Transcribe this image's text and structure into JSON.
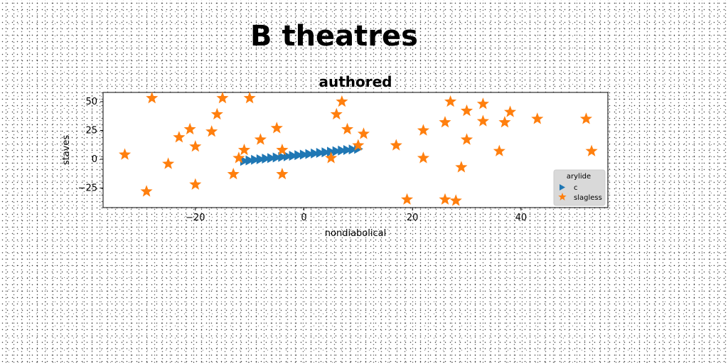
{
  "page_title": "B theatres",
  "colors": {
    "series_1": "#1f77b4",
    "series_2": "#ff7f0e",
    "legend_bg": "#d9d9d9"
  },
  "chart_data": {
    "type": "scatter",
    "title": "authored",
    "xlabel": "nondiabolical",
    "ylabel": "staves",
    "xlim": [
      -37,
      56
    ],
    "ylim": [
      -42,
      58
    ],
    "xticks": [
      -20,
      0,
      20,
      40
    ],
    "yticks": [
      -25,
      0,
      25,
      50
    ],
    "grid": false,
    "legend": {
      "title": "arylide",
      "placement": "lower-right"
    },
    "series": [
      {
        "name": "c",
        "marker": "triangle-right",
        "color": "#1f77b4",
        "x": [
          -11.0,
          -10.0,
          -9.0,
          -8.0,
          -7.0,
          -6.0,
          -5.0,
          -4.0,
          -3.0,
          -2.0,
          -1.0,
          0.0,
          1.0,
          2.0,
          3.0,
          4.0,
          5.0,
          6.0,
          7.0,
          8.0,
          9.0,
          10.0
        ],
        "y": [
          -1.5,
          -1.0,
          -0.5,
          0.0,
          0.5,
          1.0,
          1.5,
          2.0,
          2.5,
          3.0,
          3.5,
          4.0,
          4.5,
          5.0,
          5.5,
          6.0,
          6.5,
          7.0,
          7.5,
          8.0,
          8.5,
          9.0
        ]
      },
      {
        "name": "slagless",
        "marker": "star",
        "color": "#ff7f0e",
        "x": [
          -28,
          -15,
          -10,
          -16,
          7,
          6,
          -17,
          -21,
          -23,
          -20,
          -5,
          -8,
          8,
          11,
          -11,
          -4,
          -12,
          10,
          5,
          -33,
          -25,
          -13,
          -4,
          -20,
          -29,
          17,
          22,
          22,
          26,
          27,
          30,
          33,
          33,
          38,
          37,
          43,
          52,
          30,
          36,
          53,
          29,
          19,
          26,
          28
        ],
        "y": [
          53,
          53,
          53,
          39,
          50,
          39,
          24,
          26,
          19,
          11,
          27,
          17,
          26,
          22,
          8,
          8,
          1,
          12,
          1,
          4,
          -4,
          -13,
          -13,
          -22,
          -28,
          12,
          25,
          1,
          32,
          50,
          42,
          48,
          33,
          41,
          32,
          35,
          35,
          17,
          7,
          7,
          -7,
          -35,
          -35,
          -36
        ]
      }
    ]
  }
}
